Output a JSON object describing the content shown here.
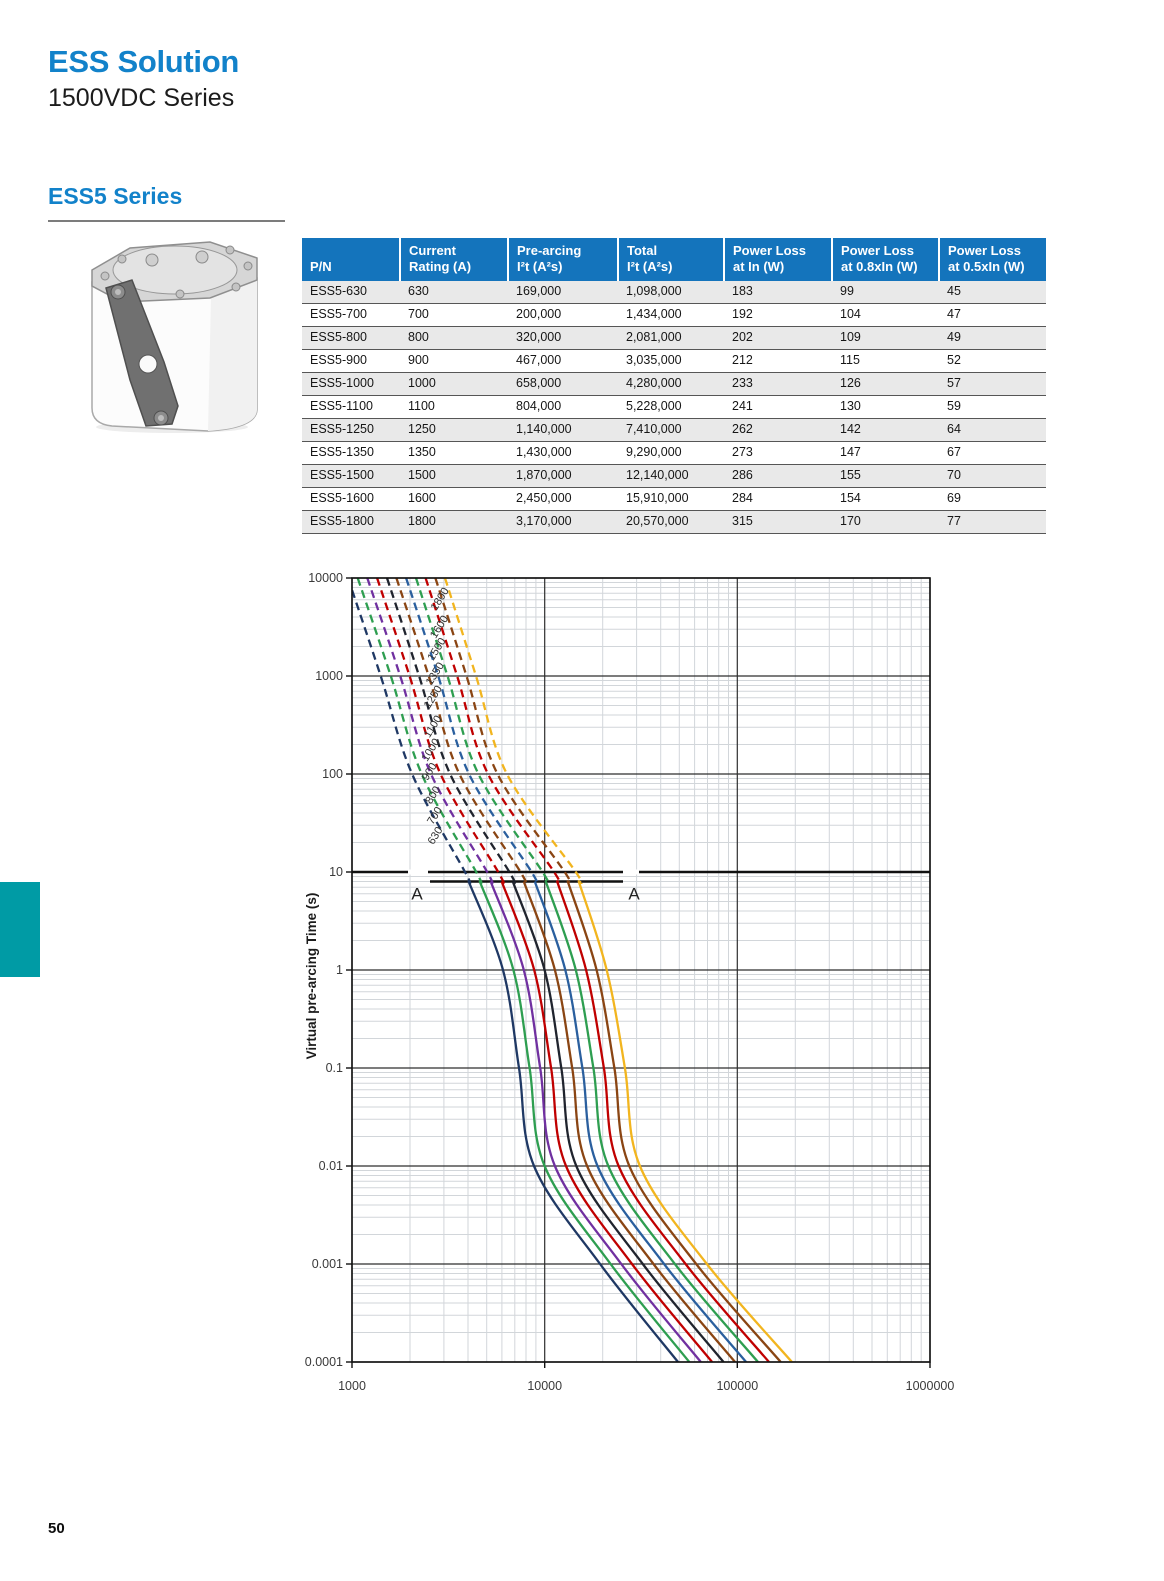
{
  "page": {
    "number": "50"
  },
  "header": {
    "title": "ESS Solution",
    "subtitle": "1500VDC Series",
    "section_title": "ESS5 Series"
  },
  "colors": {
    "title_blue": "#1282ca",
    "table_header_blue": "#1474bc",
    "teal_block": "#009ba5",
    "grid_minor": "#d2d6da",
    "grid_major": "#2e2e2e"
  },
  "product_image": {
    "alt": "ESS5 square-body fuse with mounting strap"
  },
  "table": {
    "columns": [
      {
        "line1": "",
        "line2": "P/N"
      },
      {
        "line1": "Current",
        "line2": "Rating (A)"
      },
      {
        "line1": "Pre-arcing",
        "line2": "I²t (A²s)"
      },
      {
        "line1": "Total",
        "line2": "I²t (A²s)"
      },
      {
        "line1": "Power Loss",
        "line2": "at In (W)"
      },
      {
        "line1": "Power Loss",
        "line2": "at 0.8xIn (W)"
      },
      {
        "line1": "Power Loss",
        "line2": "at 0.5xIn (W)"
      }
    ],
    "rows": [
      [
        "ESS5-630",
        "630",
        "169,000",
        "1,098,000",
        "183",
        "99",
        "45"
      ],
      [
        "ESS5-700",
        "700",
        "200,000",
        "1,434,000",
        "192",
        "104",
        "47"
      ],
      [
        "ESS5-800",
        "800",
        "320,000",
        "2,081,000",
        "202",
        "109",
        "49"
      ],
      [
        "ESS5-900",
        "900",
        "467,000",
        "3,035,000",
        "212",
        "115",
        "52"
      ],
      [
        "ESS5-1000",
        "1000",
        "658,000",
        "4,280,000",
        "233",
        "126",
        "57"
      ],
      [
        "ESS5-1100",
        "1100",
        "804,000",
        "5,228,000",
        "241",
        "130",
        "59"
      ],
      [
        "ESS5-1250",
        "1250",
        "1,140,000",
        "7,410,000",
        "262",
        "142",
        "64"
      ],
      [
        "ESS5-1350",
        "1350",
        "1,430,000",
        "9,290,000",
        "273",
        "147",
        "67"
      ],
      [
        "ESS5-1500",
        "1500",
        "1,870,000",
        "12,140,000",
        "286",
        "155",
        "70"
      ],
      [
        "ESS5-1600",
        "1600",
        "2,450,000",
        "15,910,000",
        "284",
        "154",
        "69"
      ],
      [
        "ESS5-1800",
        "1800",
        "3,170,000",
        "20,570,000",
        "315",
        "170",
        "77"
      ]
    ]
  },
  "chart_data": {
    "type": "line",
    "title": "",
    "xlabel": "",
    "ylabel": "Virtual pre-arcing Time (s)",
    "x_scale": "log",
    "y_scale": "log",
    "xlim": [
      1000,
      1000000
    ],
    "ylim": [
      0.0001,
      10000
    ],
    "x_ticks": [
      "1000",
      "10000",
      "100000",
      "1000000"
    ],
    "y_ticks": [
      "10000",
      "1000",
      "100",
      "10",
      "1",
      "0.1",
      "0.01",
      "0.001",
      "0.0001"
    ],
    "grid": "on",
    "legend": "inline-curve-labels",
    "dash_above_time_s": 8,
    "section_marker": {
      "label": "A",
      "t": 8,
      "from_A": 2600,
      "to_A": 25500
    },
    "series": [
      {
        "name": "630",
        "color": "#1f3864",
        "label_t": 20,
        "points": [
          [
            953,
            10000
          ],
          [
            1410,
            1000
          ],
          [
            2050,
            100
          ],
          [
            3860,
            10
          ],
          [
            6080,
            1
          ],
          [
            7360,
            0.1
          ],
          [
            8800,
            0.01
          ],
          [
            19400,
            0.001
          ],
          [
            49200,
            0.0001
          ]
        ]
      },
      {
        "name": "700",
        "color": "#2e9e50",
        "label_t": 32,
        "points": [
          [
            1070,
            10000
          ],
          [
            1590,
            1000
          ],
          [
            2300,
            100
          ],
          [
            4410,
            10
          ],
          [
            6880,
            1
          ],
          [
            8350,
            0.1
          ],
          [
            9990,
            0.01
          ],
          [
            22000,
            0.001
          ],
          [
            56300,
            0.0001
          ]
        ]
      },
      {
        "name": "800",
        "color": "#7030a0",
        "label_t": 52,
        "points": [
          [
            1200,
            10000
          ],
          [
            1780,
            1000
          ],
          [
            2570,
            100
          ],
          [
            5030,
            10
          ],
          [
            7790,
            1
          ],
          [
            9480,
            0.1
          ],
          [
            11300,
            0.01
          ],
          [
            25000,
            0.001
          ],
          [
            64600,
            0.0001
          ]
        ]
      },
      {
        "name": "900",
        "color": "#c00000",
        "label_t": 90,
        "points": [
          [
            1350,
            10000
          ],
          [
            1990,
            1000
          ],
          [
            2880,
            100
          ],
          [
            5740,
            10
          ],
          [
            8820,
            1
          ],
          [
            10800,
            0.1
          ],
          [
            12900,
            0.01
          ],
          [
            28400,
            0.001
          ],
          [
            74000,
            0.0001
          ]
        ]
      },
      {
        "name": "1000",
        "color": "#20242e",
        "label_t": 150,
        "points": [
          [
            1520,
            10000
          ],
          [
            2230,
            1000
          ],
          [
            3230,
            100
          ],
          [
            6560,
            10
          ],
          [
            9990,
            1
          ],
          [
            12200,
            0.1
          ],
          [
            14600,
            0.01
          ],
          [
            32300,
            0.001
          ],
          [
            84800,
            0.0001
          ]
        ]
      },
      {
        "name": "1100",
        "color": "#8a4513",
        "label_t": 260,
        "points": [
          [
            1700,
            10000
          ],
          [
            2500,
            1000
          ],
          [
            3610,
            100
          ],
          [
            7490,
            10
          ],
          [
            11300,
            1
          ],
          [
            13900,
            0.1
          ],
          [
            16600,
            0.01
          ],
          [
            36700,
            0.001
          ],
          [
            97200,
            0.0001
          ]
        ]
      },
      {
        "name": "1250",
        "color": "#2a5f9e",
        "label_t": 520,
        "points": [
          [
            1910,
            10000
          ],
          [
            2800,
            1000
          ],
          [
            4050,
            100
          ],
          [
            8550,
            10
          ],
          [
            12800,
            1
          ],
          [
            15700,
            0.1
          ],
          [
            18800,
            0.01
          ],
          [
            41700,
            0.001
          ],
          [
            111000,
            0.0001
          ]
        ]
      },
      {
        "name": "1350",
        "color": "#2e9e50",
        "label_t": 900,
        "points": [
          [
            2150,
            10000
          ],
          [
            3130,
            1000
          ],
          [
            4530,
            100
          ],
          [
            9760,
            10
          ],
          [
            14500,
            1
          ],
          [
            17900,
            0.1
          ],
          [
            21400,
            0.01
          ],
          [
            47400,
            0.001
          ],
          [
            128000,
            0.0001
          ]
        ]
      },
      {
        "name": "1500",
        "color": "#c00000",
        "label_t": 1600,
        "points": [
          [
            2410,
            10000
          ],
          [
            3510,
            1000
          ],
          [
            5080,
            100
          ],
          [
            11200,
            10
          ],
          [
            16400,
            1
          ],
          [
            20300,
            0.1
          ],
          [
            24200,
            0.01
          ],
          [
            53900,
            0.001
          ],
          [
            146000,
            0.0001
          ]
        ]
      },
      {
        "name": "1600",
        "color": "#8a4513",
        "label_t": 2700,
        "points": [
          [
            2710,
            10000
          ],
          [
            3930,
            1000
          ],
          [
            5690,
            100
          ],
          [
            12700,
            10
          ],
          [
            18600,
            1
          ],
          [
            23000,
            0.1
          ],
          [
            27500,
            0.01
          ],
          [
            61200,
            0.001
          ],
          [
            168000,
            0.0001
          ]
        ]
      },
      {
        "name": "1800",
        "color": "#f2b51f",
        "label_t": 5200,
        "points": [
          [
            3040,
            10000
          ],
          [
            4400,
            1000
          ],
          [
            6370,
            100
          ],
          [
            14500,
            10
          ],
          [
            21000,
            1
          ],
          [
            26100,
            0.1
          ],
          [
            31200,
            0.01
          ],
          [
            69500,
            0.001
          ],
          [
            192000,
            0.0001
          ]
        ]
      }
    ]
  }
}
